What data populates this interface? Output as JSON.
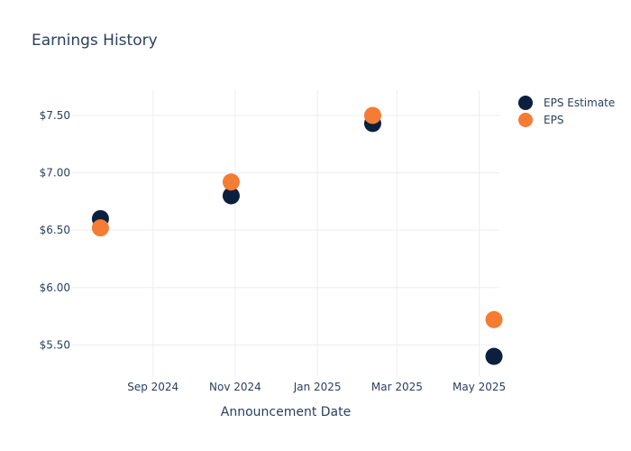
{
  "chart_data": {
    "type": "scatter",
    "title": "Earnings History",
    "xlabel": "Announcement Date",
    "ylabel": "",
    "x_ticks": [
      {
        "date": "2024-09-01",
        "label": "Sep 2024"
      },
      {
        "date": "2024-11-01",
        "label": "Nov 2024"
      },
      {
        "date": "2025-01-01",
        "label": "Jan 2025"
      },
      {
        "date": "2025-03-01",
        "label": "Mar 2025"
      },
      {
        "date": "2025-05-01",
        "label": "May 2025"
      }
    ],
    "y_ticks": [
      {
        "value": 5.5,
        "label": "$5.50"
      },
      {
        "value": 6.0,
        "label": "$6.00"
      },
      {
        "value": 6.5,
        "label": "$6.50"
      },
      {
        "value": 7.0,
        "label": "$7.00"
      },
      {
        "value": 7.5,
        "label": "$7.50"
      }
    ],
    "xlim": [
      "2024-07-03",
      "2025-05-16"
    ],
    "ylim": [
      5.22,
      7.72
    ],
    "grid": true,
    "legend_position": "top-right",
    "series": [
      {
        "name": "EPS Estimate",
        "color": "#0b1f3f",
        "points": [
          {
            "date": "2024-07-24",
            "value": 6.6
          },
          {
            "date": "2024-10-29",
            "value": 6.8
          },
          {
            "date": "2025-02-11",
            "value": 7.43
          },
          {
            "date": "2025-05-12",
            "value": 5.4
          }
        ]
      },
      {
        "name": "EPS",
        "color": "#f47c33",
        "points": [
          {
            "date": "2024-07-24",
            "value": 6.52
          },
          {
            "date": "2024-10-29",
            "value": 6.92
          },
          {
            "date": "2025-02-11",
            "value": 7.5
          },
          {
            "date": "2025-05-12",
            "value": 5.72
          }
        ]
      }
    ]
  }
}
